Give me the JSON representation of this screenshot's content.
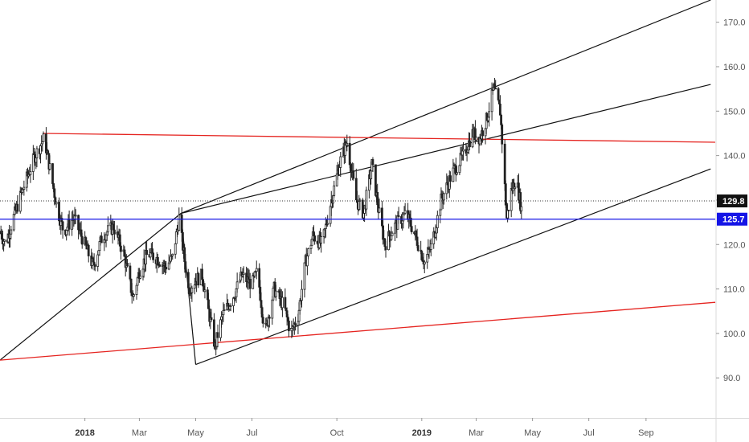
{
  "colors": {
    "background": "#ffffff",
    "candle": "#222222",
    "channel": "#111111",
    "trend_red": "#e52420",
    "support_blue": "#1414e6",
    "last_price_tag": "#111111",
    "level_tag": "#1414e6",
    "axis_text": "#555555"
  },
  "chart_data": {
    "type": "candlestick",
    "y_axis": {
      "position": "right",
      "range": [
        81,
        175
      ],
      "ticks": [
        "170.0",
        "160.0",
        "150.0",
        "140.0",
        "130.0",
        "120.0",
        "110.0",
        "100.0",
        "90.0"
      ]
    },
    "x_axis": {
      "range": [
        "2017-10-01",
        "2019-11-15"
      ],
      "labels": [
        {
          "text": "2018",
          "date": "2018-01-01",
          "bold": true
        },
        {
          "text": "Mar",
          "date": "2018-03-01",
          "bold": false
        },
        {
          "text": "May",
          "date": "2018-05-01",
          "bold": false
        },
        {
          "text": "Jul",
          "date": "2018-07-01",
          "bold": false
        },
        {
          "text": "Oct",
          "date": "2018-10-01",
          "bold": false
        },
        {
          "text": "2019",
          "date": "2019-01-01",
          "bold": true
        },
        {
          "text": "Mar",
          "date": "2019-03-01",
          "bold": false
        },
        {
          "text": "May",
          "date": "2019-05-01",
          "bold": false
        },
        {
          "text": "Jul",
          "date": "2019-07-01",
          "bold": false
        },
        {
          "text": "Sep",
          "date": "2019-09-01",
          "bold": false
        }
      ]
    },
    "price_path": [
      [
        "2017-10-01",
        123
      ],
      [
        "2017-10-07",
        120
      ],
      [
        "2017-10-14",
        125
      ],
      [
        "2017-10-25",
        132
      ],
      [
        "2017-11-08",
        140
      ],
      [
        "2017-11-18",
        144
      ],
      [
        "2017-11-25",
        136
      ],
      [
        "2017-12-02",
        128
      ],
      [
        "2017-12-09",
        123
      ],
      [
        "2017-12-20",
        126
      ],
      [
        "2018-01-01",
        120
      ],
      [
        "2018-01-10",
        115
      ],
      [
        "2018-01-20",
        122
      ],
      [
        "2018-02-01",
        124
      ],
      [
        "2018-02-12",
        118
      ],
      [
        "2018-02-22",
        108
      ],
      [
        "2018-03-01",
        114
      ],
      [
        "2018-03-10",
        118
      ],
      [
        "2018-03-20",
        117
      ],
      [
        "2018-03-29",
        115
      ],
      [
        "2018-04-06",
        117
      ],
      [
        "2018-04-13",
        126
      ],
      [
        "2018-04-18",
        118
      ],
      [
        "2018-04-23",
        110
      ],
      [
        "2018-05-01",
        112
      ],
      [
        "2018-05-08",
        113
      ],
      [
        "2018-05-15",
        105
      ],
      [
        "2018-05-22",
        97
      ],
      [
        "2018-05-30",
        104
      ],
      [
        "2018-06-10",
        108
      ],
      [
        "2018-06-20",
        113
      ],
      [
        "2018-07-01",
        111
      ],
      [
        "2018-07-07",
        114
      ],
      [
        "2018-07-15",
        100
      ],
      [
        "2018-07-25",
        110
      ],
      [
        "2018-08-05",
        106
      ],
      [
        "2018-08-12",
        100
      ],
      [
        "2018-08-20",
        104
      ],
      [
        "2018-08-28",
        116
      ],
      [
        "2018-09-05",
        122
      ],
      [
        "2018-09-15",
        120
      ],
      [
        "2018-09-25",
        130
      ],
      [
        "2018-10-05",
        139
      ],
      [
        "2018-10-12",
        143
      ],
      [
        "2018-10-22",
        130
      ],
      [
        "2018-10-30",
        127
      ],
      [
        "2018-11-08",
        138
      ],
      [
        "2018-11-15",
        128
      ],
      [
        "2018-11-22",
        120
      ],
      [
        "2018-12-02",
        124
      ],
      [
        "2018-12-15",
        127
      ],
      [
        "2018-12-25",
        122
      ],
      [
        "2019-01-04",
        116
      ],
      [
        "2019-01-12",
        120
      ],
      [
        "2019-01-22",
        130
      ],
      [
        "2019-02-03",
        136
      ],
      [
        "2019-02-15",
        140
      ],
      [
        "2019-02-25",
        145
      ],
      [
        "2019-03-05",
        144
      ],
      [
        "2019-03-12",
        148
      ],
      [
        "2019-03-20",
        155
      ],
      [
        "2019-03-27",
        150
      ],
      [
        "2019-03-30",
        140
      ],
      [
        "2019-04-03",
        126
      ],
      [
        "2019-04-08",
        132
      ],
      [
        "2019-04-13",
        135
      ],
      [
        "2019-04-19",
        128
      ]
    ],
    "annotations": {
      "channel": {
        "origin": [
          "2018-05-01",
          93
        ],
        "upper_line": [
          [
            "2017-10-01",
            94
          ],
          [
            "2018-04-15",
            127
          ],
          [
            "2019-11-10",
            175
          ]
        ],
        "middle_line": [
          [
            "2018-04-15",
            127
          ],
          [
            "2019-11-10",
            156
          ]
        ],
        "lower_line": [
          [
            "2018-05-01",
            93
          ],
          [
            "2019-11-10",
            137
          ]
        ],
        "swing_line": [
          [
            "2018-04-15",
            127
          ],
          [
            "2018-05-01",
            93
          ]
        ]
      },
      "red_lines": [
        {
          "from": [
            "2017-11-17",
            145
          ],
          "to": [
            "2019-11-15",
            143
          ]
        },
        {
          "from": [
            "2017-10-01",
            94
          ],
          "to": [
            "2019-11-15",
            107
          ]
        }
      ],
      "blue_level": {
        "value": 125.7,
        "label": "125.7"
      },
      "last_price": {
        "value": 129.8,
        "label": "129.8"
      }
    }
  }
}
